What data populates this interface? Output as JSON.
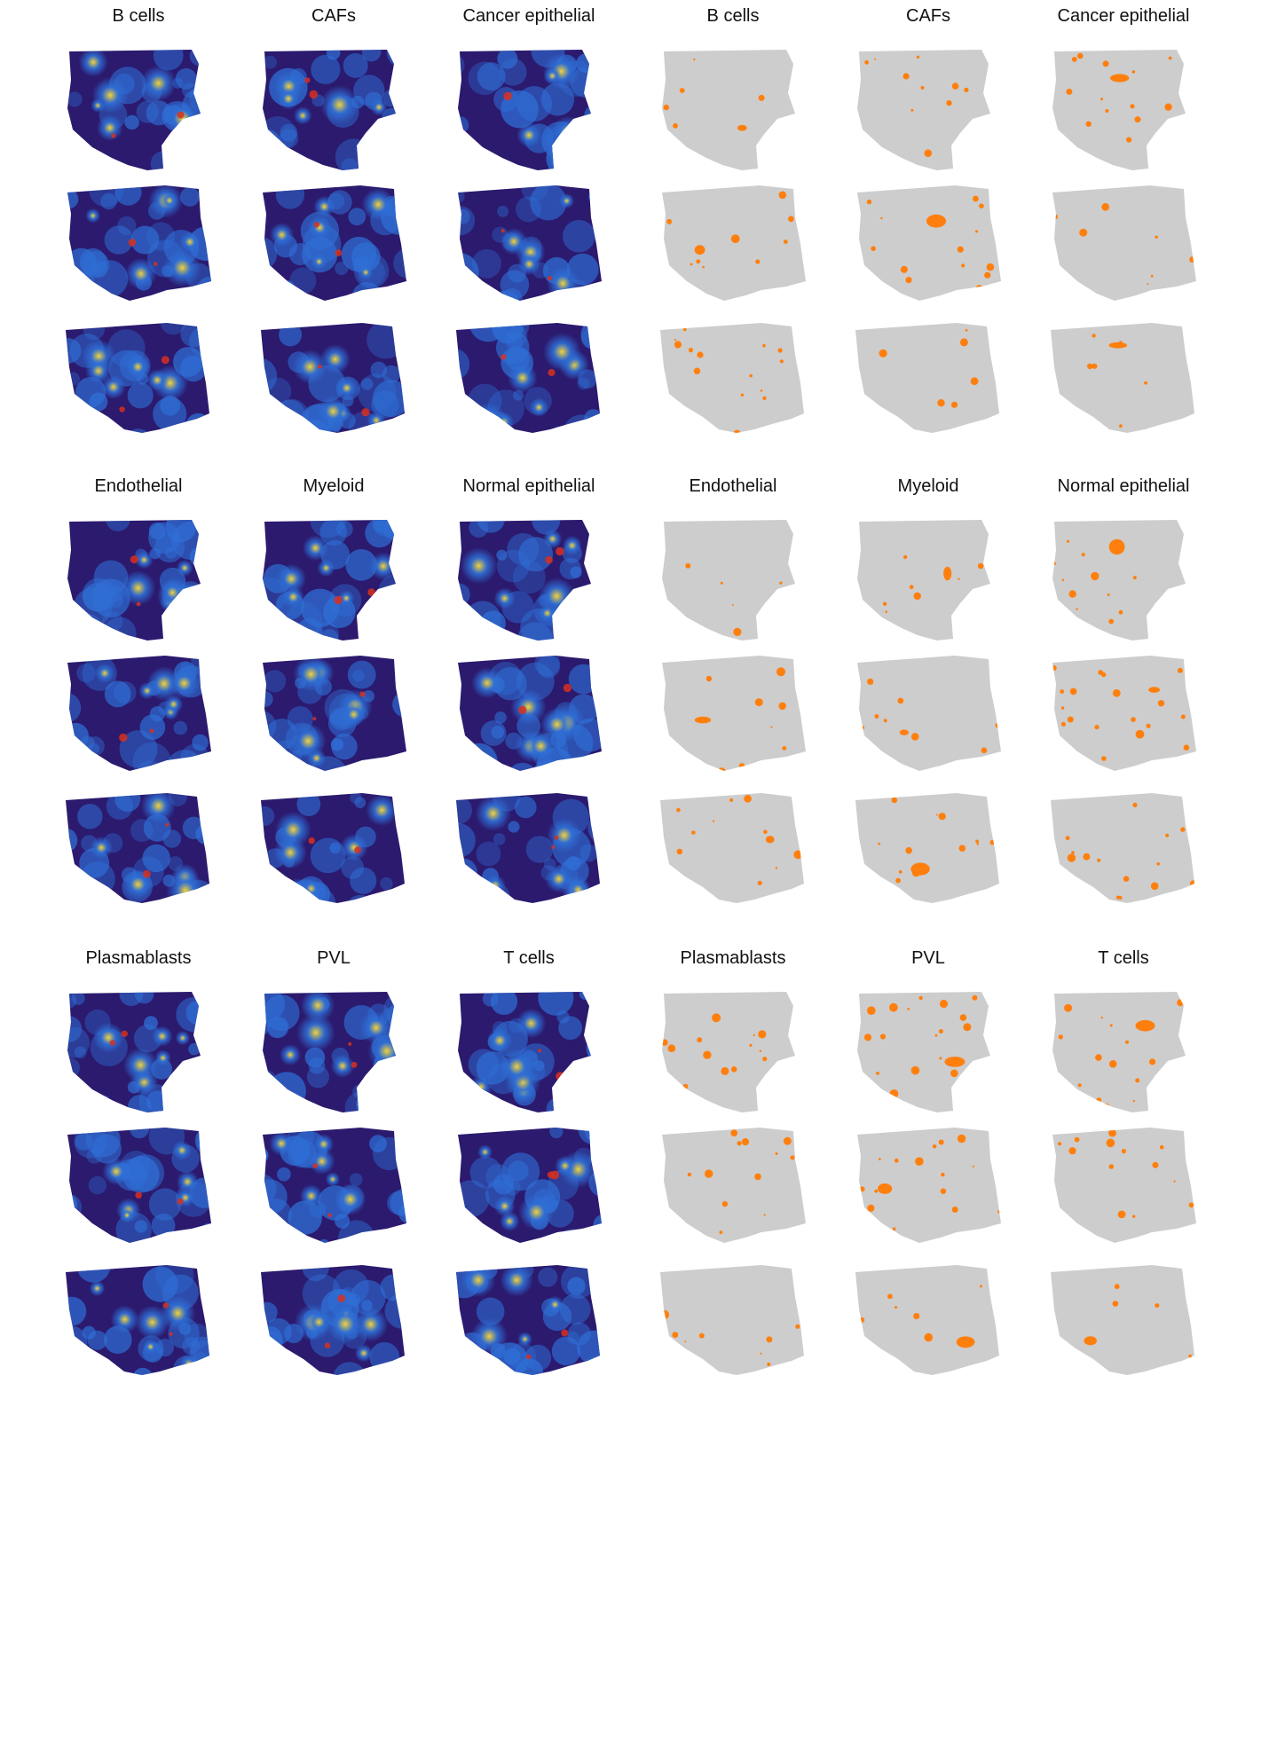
{
  "figure": {
    "blocks": [
      {
        "heatmap_titles": [
          "B cells",
          "CAFs",
          "Cancer epithelial"
        ],
        "mask_titles": [
          "B cells",
          "CAFs",
          "Cancer epithelial"
        ]
      },
      {
        "heatmap_titles": [
          "Endothelial",
          "Myeloid",
          "Normal epithelial"
        ],
        "mask_titles": [
          "Endothelial",
          "Myeloid",
          "Normal epithelial"
        ]
      },
      {
        "heatmap_titles": [
          "Plasmablasts",
          "PVL",
          "T cells"
        ],
        "mask_titles": [
          "Plasmablasts",
          "PVL",
          "T cells"
        ]
      }
    ],
    "rows_per_block": 3,
    "colors": {
      "tissue_gray": "#cdcdcd",
      "mask_orange": "#ff7f0e",
      "heat_low": "#2b1a6e",
      "heat_mid": "#2f6fd6",
      "heat_high": "#f2d33a",
      "heat_peak": "#d7301f"
    },
    "colormap": "jet-like (dark blue to red)"
  }
}
